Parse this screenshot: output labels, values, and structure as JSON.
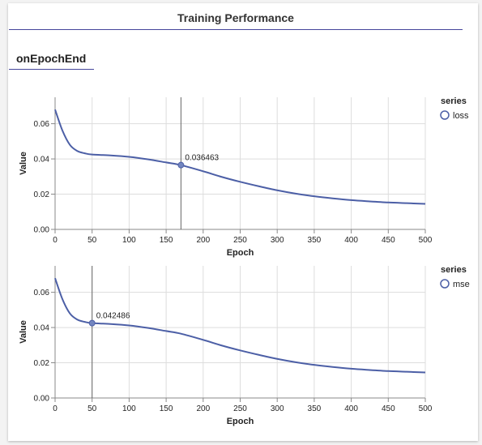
{
  "title": "Training Performance",
  "tab": {
    "label": "onEpochEnd"
  },
  "colors": {
    "series": "#4c5fa6",
    "grid": "#dddddd",
    "axis": "#888888",
    "accent": "#45469b"
  },
  "chart_data": [
    {
      "type": "line",
      "xlabel": "Epoch",
      "ylabel": "Value",
      "xlim": [
        0,
        500
      ],
      "ylim": [
        0,
        0.075
      ],
      "x_ticks": [
        0,
        50,
        100,
        150,
        200,
        250,
        300,
        350,
        400,
        450,
        500
      ],
      "y_ticks": [
        "0.00",
        "0.02",
        "0.04",
        "0.06"
      ],
      "grid": true,
      "legend": {
        "title": "series",
        "entries": [
          "loss"
        ]
      },
      "series": [
        {
          "name": "loss",
          "x": [
            0,
            10,
            20,
            30,
            40,
            50,
            75,
            100,
            125,
            150,
            170,
            200,
            225,
            250,
            275,
            300,
            325,
            350,
            375,
            400,
            425,
            450,
            475,
            500
          ],
          "y": [
            0.068,
            0.056,
            0.048,
            0.0445,
            0.0432,
            0.0425,
            0.042,
            0.0412,
            0.0398,
            0.038,
            0.0365,
            0.033,
            0.0298,
            0.027,
            0.0245,
            0.0222,
            0.0203,
            0.0188,
            0.0176,
            0.0166,
            0.0159,
            0.0153,
            0.0149,
            0.0145
          ]
        }
      ],
      "hover": {
        "x": 170,
        "y": 0.0365,
        "label": "0.036463"
      }
    },
    {
      "type": "line",
      "xlabel": "Epoch",
      "ylabel": "Value",
      "xlim": [
        0,
        500
      ],
      "ylim": [
        0,
        0.075
      ],
      "x_ticks": [
        0,
        50,
        100,
        150,
        200,
        250,
        300,
        350,
        400,
        450,
        500
      ],
      "y_ticks": [
        "0.00",
        "0.02",
        "0.04",
        "0.06"
      ],
      "grid": true,
      "legend": {
        "title": "series",
        "entries": [
          "mse"
        ]
      },
      "series": [
        {
          "name": "mse",
          "x": [
            0,
            10,
            20,
            30,
            40,
            50,
            75,
            100,
            125,
            150,
            170,
            200,
            225,
            250,
            275,
            300,
            325,
            350,
            375,
            400,
            425,
            450,
            475,
            500
          ],
          "y": [
            0.068,
            0.056,
            0.048,
            0.0445,
            0.0432,
            0.0425,
            0.042,
            0.0412,
            0.0398,
            0.038,
            0.0365,
            0.033,
            0.0298,
            0.027,
            0.0245,
            0.0222,
            0.0203,
            0.0188,
            0.0176,
            0.0166,
            0.0159,
            0.0153,
            0.0149,
            0.0145
          ]
        }
      ],
      "hover": {
        "x": 50,
        "y": 0.0425,
        "label": "0.042486"
      }
    }
  ]
}
